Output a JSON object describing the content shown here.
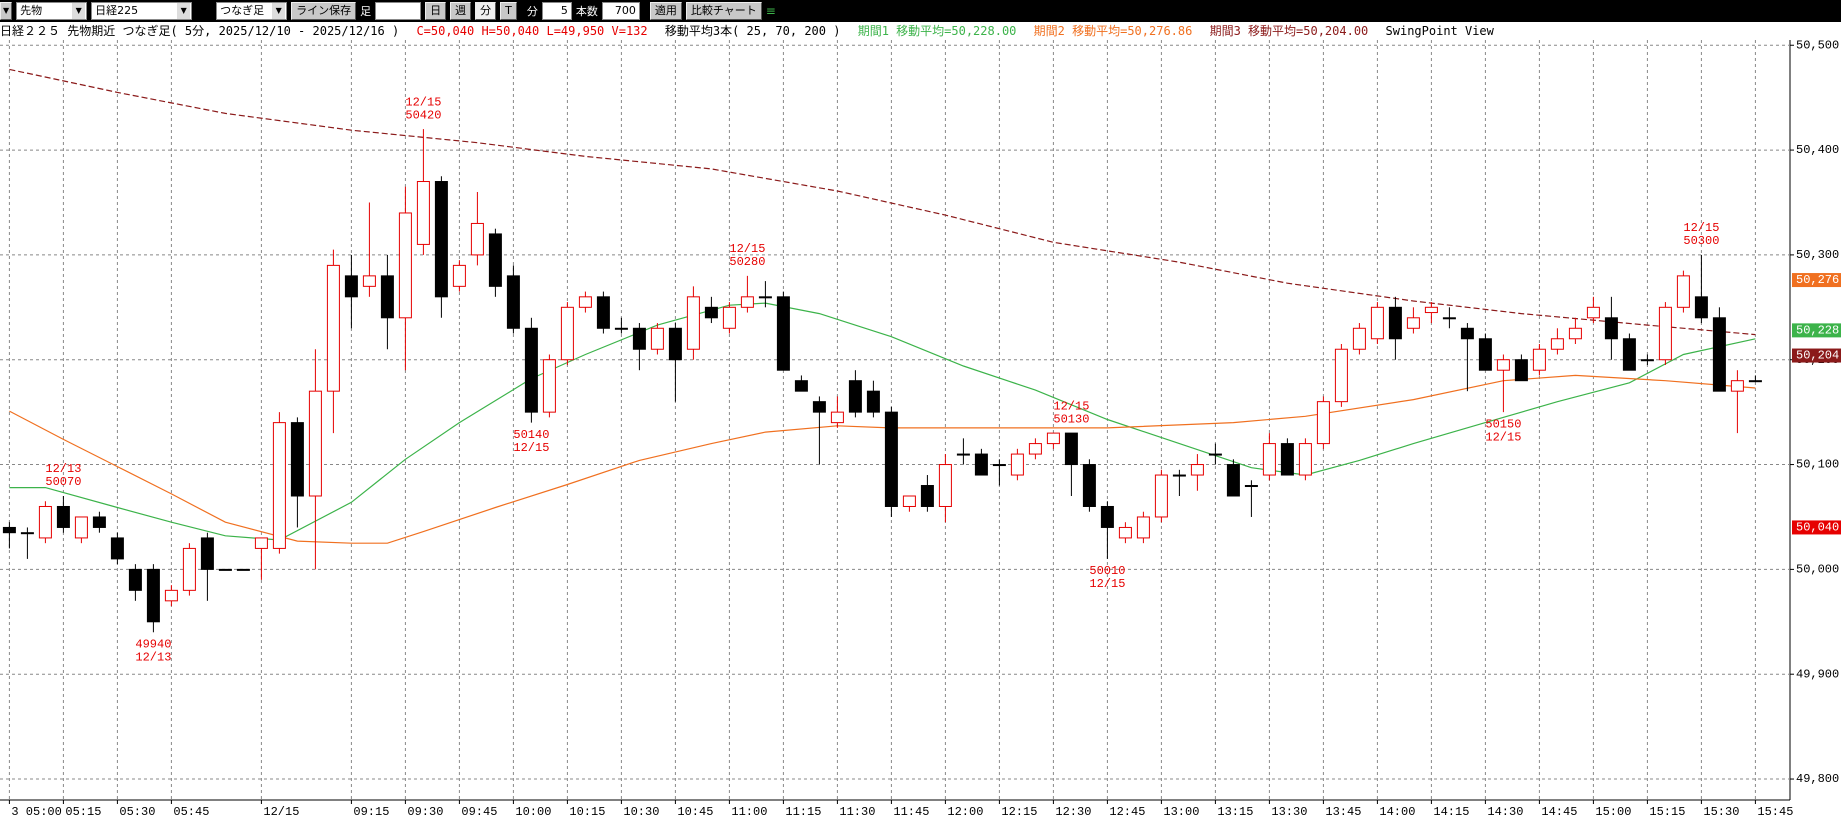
{
  "toolbar": {
    "symbol": "先物",
    "index": "日経225",
    "mode": "つなぎ足",
    "save": "ライン保存",
    "bar_label": "足",
    "periods": [
      "日",
      "週",
      "分",
      "T"
    ],
    "unit": "分",
    "interval": 5,
    "count_label": "本数",
    "count": 700,
    "apply": "適用",
    "compare": "比較チャート"
  },
  "header": {
    "title": "日経２２５ 先物期近 つなぎ足( 5分, 2025/12/10 - 2025/12/16 )",
    "ohlc": "C=50,040 H=50,040 L=49,950 V=132",
    "ma_title": "移動平均3本( 25, 70, 200 )",
    "ma1": "期間1 移動平均=50,228.00",
    "ma2": "期間2 移動平均=50,276.86",
    "ma3": "期間3 移動平均=50,204.00",
    "view": "SwingPoint View"
  },
  "chart_data": {
    "type": "candlestick",
    "categories": [
      "3 05:00",
      null,
      null,
      "05:15",
      null,
      null,
      "05:30",
      null,
      null,
      "05:45",
      null,
      null,
      null,
      null,
      "12/15",
      null,
      null,
      null,
      null,
      "09:15",
      null,
      null,
      "09:30",
      null,
      null,
      "09:45",
      null,
      null,
      "10:00",
      null,
      null,
      "10:15",
      null,
      null,
      "10:30",
      null,
      null,
      "10:45",
      null,
      null,
      "11:00",
      null,
      null,
      "11:15",
      null,
      null,
      "11:30",
      null,
      null,
      "11:45",
      null,
      null,
      "12:00",
      null,
      null,
      "12:15",
      null,
      null,
      "12:30",
      null,
      null,
      "12:45",
      null,
      null,
      "13:00",
      null,
      null,
      "13:15",
      null,
      null,
      "13:30",
      null,
      null,
      "13:45",
      null,
      null,
      "14:00",
      null,
      null,
      "14:15",
      null,
      null,
      "14:30",
      null,
      null,
      "14:45",
      null,
      null,
      "15:00",
      null,
      null,
      "15:15",
      null,
      null,
      "15:30",
      null,
      null,
      "15:45"
    ],
    "candles": {
      "open": [
        50040,
        50035,
        50030,
        50060,
        50030,
        50050,
        50030,
        50000,
        50000,
        49970,
        49980,
        50030,
        50000,
        50000,
        50020,
        50020,
        50140,
        50070,
        50170,
        50280,
        50270,
        50280,
        50240,
        50310,
        50370,
        50270,
        50300,
        50320,
        50280,
        50230,
        50150,
        50200,
        50250,
        50260,
        50230,
        50230,
        50210,
        50230,
        50210,
        50250,
        50230,
        50250,
        50260,
        50260,
        50180,
        50160,
        50140,
        50180,
        50170,
        50150,
        50060,
        50080,
        50060,
        50110,
        50110,
        50100,
        50090,
        50110,
        50120,
        50130,
        50100,
        50060,
        50030,
        50030,
        50050,
        50090,
        50090,
        50110,
        50100,
        50080,
        50090,
        50120,
        50090,
        50120,
        50160,
        50210,
        50220,
        50250,
        50230,
        50245,
        50240,
        50230,
        50220,
        50190,
        50200,
        50190,
        50210,
        50220,
        50240,
        50240,
        50220,
        50200,
        50200,
        50250,
        50260,
        50240,
        50170,
        50180
      ],
      "high": [
        50045,
        50040,
        50065,
        50070,
        50050,
        50055,
        50035,
        50005,
        50005,
        49985,
        50025,
        50035,
        50000,
        50000,
        50030,
        50150,
        50145,
        50210,
        50305,
        50300,
        50350,
        50300,
        50365,
        50420,
        50375,
        50295,
        50360,
        50325,
        50290,
        50240,
        50205,
        50255,
        50265,
        50265,
        50240,
        50235,
        50235,
        50235,
        50270,
        50260,
        50255,
        50280,
        50275,
        50265,
        50185,
        50165,
        50165,
        50190,
        50180,
        50155,
        50065,
        50090,
        50110,
        50125,
        50115,
        50105,
        50115,
        50125,
        50130,
        50130,
        50105,
        50065,
        50045,
        50055,
        50095,
        50095,
        50110,
        50120,
        50105,
        50085,
        50130,
        50125,
        50125,
        50165,
        50215,
        50235,
        50255,
        50260,
        50250,
        50255,
        50250,
        50235,
        50225,
        50205,
        50205,
        50215,
        50230,
        50240,
        50260,
        50260,
        50225,
        50205,
        50255,
        50285,
        50300,
        50250,
        50190,
        50185
      ],
      "low": [
        50020,
        50010,
        50025,
        50035,
        50025,
        50035,
        50005,
        49970,
        49940,
        49965,
        49975,
        49970,
        50000,
        50000,
        49990,
        50015,
        50040,
        50000,
        50130,
        50230,
        50260,
        50210,
        50190,
        50300,
        50240,
        50265,
        50290,
        50260,
        50225,
        50140,
        50145,
        50195,
        50245,
        50225,
        50225,
        50190,
        50205,
        50160,
        50200,
        50235,
        50225,
        50245,
        50250,
        50190,
        50170,
        50100,
        50135,
        50145,
        50145,
        50050,
        50055,
        50055,
        50045,
        50100,
        50090,
        50080,
        50085,
        50105,
        50115,
        50070,
        50055,
        50010,
        50025,
        50025,
        50045,
        50070,
        50075,
        50100,
        50070,
        50050,
        50085,
        50090,
        50085,
        50115,
        50155,
        50205,
        50215,
        50200,
        50225,
        50235,
        50230,
        50170,
        50190,
        50150,
        50180,
        50185,
        50205,
        50215,
        50235,
        50200,
        50190,
        50195,
        50195,
        50245,
        50235,
        50170,
        50130,
        50180
      ],
      "close": [
        50035,
        50035,
        50060,
        50040,
        50050,
        50040,
        50010,
        49980,
        49950,
        49980,
        50020,
        50000,
        50000,
        50000,
        50030,
        50140,
        50070,
        50170,
        50290,
        50260,
        50280,
        50240,
        50340,
        50370,
        50260,
        50290,
        50330,
        50270,
        50230,
        50150,
        50200,
        50250,
        50260,
        50230,
        50230,
        50210,
        50230,
        50200,
        50260,
        50240,
        50250,
        50260,
        50260,
        50190,
        50170,
        50150,
        50150,
        50150,
        50150,
        50060,
        50070,
        50060,
        50100,
        50110,
        50090,
        50100,
        50110,
        50120,
        50130,
        50100,
        50060,
        50040,
        50040,
        50050,
        50090,
        50090,
        50100,
        50110,
        50070,
        50080,
        50120,
        50090,
        50120,
        50160,
        50210,
        50230,
        50250,
        50220,
        50240,
        50250,
        50240,
        50220,
        50190,
        50200,
        50180,
        50210,
        50220,
        50230,
        50250,
        50220,
        50190,
        50200,
        50250,
        50280,
        50240,
        50170,
        50180,
        50180
      ]
    },
    "up_color": "#e60000",
    "down_color": "#000000",
    "swings": [
      null,
      null,
      null,
      {
        "date": "12/13",
        "value": 50070
      },
      null,
      null,
      null,
      null,
      {
        "date": "12/13",
        "value": 49940
      },
      null,
      null,
      null,
      null,
      null,
      null,
      null,
      null,
      null,
      null,
      null,
      null,
      null,
      null,
      {
        "date": "12/15",
        "value": 50420
      },
      null,
      null,
      null,
      null,
      null,
      {
        "date": "12/15",
        "value": 50140
      },
      null,
      null,
      null,
      null,
      null,
      null,
      null,
      null,
      null,
      null,
      null,
      {
        "date": "12/15",
        "value": 50280
      },
      null,
      null,
      null,
      null,
      null,
      null,
      null,
      null,
      null,
      null,
      null,
      null,
      null,
      null,
      null,
      null,
      null,
      {
        "date": "12/15",
        "value": 50130
      },
      null,
      {
        "date": "12/15",
        "value": 50010
      },
      null,
      null,
      null,
      null,
      null,
      null,
      null,
      null,
      null,
      null,
      null,
      null,
      null,
      null,
      null,
      null,
      null,
      null,
      null,
      null,
      null,
      {
        "date": "12/15",
        "value": 50150
      },
      null,
      null,
      null,
      null,
      null,
      null,
      null,
      null,
      null,
      null,
      {
        "date": "12/15",
        "value": 50300
      },
      null,
      null,
      null
    ],
    "moving_averages": [
      {
        "color": "#3cb34a",
        "dash": false,
        "x": [
          0,
          2,
          6,
          9,
          12,
          15,
          19,
          22,
          25,
          29,
          32,
          36,
          40,
          42,
          45,
          49,
          53,
          57,
          61,
          65,
          69,
          72,
          75,
          78,
          82,
          86,
          90,
          93,
          97
        ],
        "values": [
          50078,
          50078,
          50059,
          50045,
          50032,
          50028,
          50064,
          50105,
          50140,
          50182,
          50205,
          50233,
          50252,
          50254,
          50244,
          50222,
          50194,
          50171,
          50143,
          50120,
          50097,
          50090,
          50104,
          50120,
          50140,
          50160,
          50178,
          50205,
          50220
        ]
      },
      {
        "color": "#f07020",
        "dash": false,
        "x": [
          0,
          3,
          6,
          9,
          12,
          16,
          19,
          21,
          23,
          27,
          31,
          35,
          39,
          42,
          46,
          49,
          55,
          61,
          68,
          72,
          78,
          83,
          87,
          92,
          97
        ],
        "values": [
          50151,
          50124,
          50098,
          50072,
          50045,
          50027,
          50025,
          50025,
          50036,
          50059,
          50081,
          50104,
          50120,
          50131,
          50137,
          50135,
          50135,
          50135,
          50140,
          50146,
          50162,
          50180,
          50185,
          50180,
          50173
        ]
      },
      {
        "color": "#8b1a1a",
        "dash": true,
        "x": [
          0,
          6,
          12,
          19,
          26,
          32,
          39,
          42,
          46,
          52,
          58,
          65,
          71,
          78,
          84,
          91,
          97
        ],
        "values": [
          50477,
          50455,
          50435,
          50419,
          50407,
          50394,
          50382,
          50373,
          50361,
          50338,
          50312,
          50293,
          50273,
          50256,
          50244,
          50233,
          50224
        ]
      }
    ],
    "price_tags": [
      {
        "value": 50276,
        "label": "50,276",
        "color": "#f07020"
      },
      {
        "value": 50228,
        "label": "50,228",
        "color": "#3cb34a"
      },
      {
        "value": 50204,
        "label": "50,204",
        "color": "#8b1a1a"
      },
      {
        "value": 50040,
        "label": "50,040",
        "color": "#e60000"
      }
    ],
    "ylim": [
      49780,
      50505
    ],
    "yticks": [
      {
        "value": 49800,
        "label": "49,800"
      },
      {
        "value": 49900,
        "label": "49,900"
      },
      {
        "value": 50000,
        "label": "50,000"
      },
      {
        "value": 50100,
        "label": "50,100"
      },
      {
        "value": 50200,
        "label": "50,200"
      },
      {
        "value": 50300,
        "label": "50,300"
      },
      {
        "value": 50400,
        "label": "50,400"
      },
      {
        "value": 50500,
        "label": "50,500"
      }
    ],
    "grid": true
  }
}
